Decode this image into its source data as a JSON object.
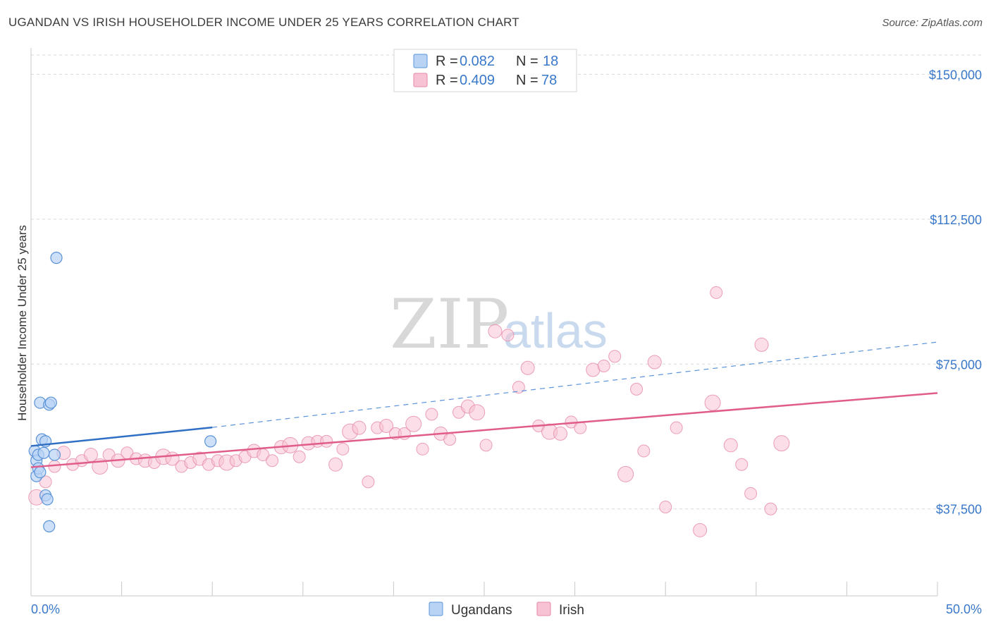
{
  "title": "UGANDAN VS IRISH HOUSEHOLDER INCOME UNDER 25 YEARS CORRELATION CHART",
  "source": "Source: ZipAtlas.com",
  "watermark": {
    "zip": "ZIP",
    "atlas": "atlas"
  },
  "colors": {
    "ugandan_fill": "#b9d3f5",
    "ugandan_stroke": "#5b93d8",
    "ugandan_line": "#2f6fc4",
    "irish_fill": "#f7c2d3",
    "irish_stroke": "#e68aa8",
    "irish_line": "#e05c8a",
    "axis_text": "#3a78c9",
    "grid": "#d9d9d9"
  },
  "legend": {
    "r_label": "R =",
    "n_label": "N =",
    "ugandan": {
      "r": "0.082",
      "n": "18"
    },
    "irish": {
      "r": "0.409",
      "n": "78"
    }
  },
  "chart_data": {
    "type": "scatter",
    "title": "UGANDAN VS IRISH HOUSEHOLDER INCOME UNDER 25 YEARS CORRELATION CHART",
    "xlabel": "",
    "ylabel": "Householder Income Under 25 years",
    "xlim": [
      0,
      50
    ],
    "ylim": [
      15000,
      155000
    ],
    "x_tick_labels": [
      "0.0%",
      "50.0%"
    ],
    "y_ticks": [
      37500,
      75000,
      112500,
      150000
    ],
    "y_tick_labels": [
      "$37,500",
      "$75,000",
      "$112,500",
      "$150,000"
    ],
    "grid": true,
    "legend_position": "top-center",
    "series": [
      {
        "name": "Ugandans",
        "r": 0.082,
        "n": 18,
        "points": [
          [
            0.2,
            52500
          ],
          [
            0.3,
            50000
          ],
          [
            0.3,
            46000
          ],
          [
            0.4,
            51500
          ],
          [
            0.4,
            48000
          ],
          [
            0.5,
            47000
          ],
          [
            0.5,
            65000
          ],
          [
            0.6,
            55500
          ],
          [
            0.7,
            52000
          ],
          [
            0.8,
            55000
          ],
          [
            0.8,
            41000
          ],
          [
            0.9,
            40000
          ],
          [
            1.0,
            64500
          ],
          [
            1.1,
            65000
          ],
          [
            1.0,
            33000
          ],
          [
            1.3,
            51500
          ],
          [
            1.4,
            102500
          ],
          [
            9.9,
            55000
          ]
        ],
        "trend_solid": [
          [
            0,
            53800
          ],
          [
            10,
            58600
          ]
        ],
        "trend_dashed": [
          [
            10,
            58600
          ],
          [
            50,
            80700
          ]
        ]
      },
      {
        "name": "Irish",
        "r": 0.409,
        "n": 78,
        "points": [
          [
            0.3,
            40500
          ],
          [
            0.8,
            44500
          ],
          [
            1.3,
            48500
          ],
          [
            1.8,
            52000
          ],
          [
            2.3,
            49000
          ],
          [
            2.8,
            50000
          ],
          [
            3.3,
            51500
          ],
          [
            3.8,
            48500
          ],
          [
            4.3,
            51500
          ],
          [
            4.8,
            50000
          ],
          [
            5.3,
            52000
          ],
          [
            5.8,
            50500
          ],
          [
            6.3,
            50000
          ],
          [
            6.8,
            49500
          ],
          [
            7.3,
            51000
          ],
          [
            7.8,
            50500
          ],
          [
            8.3,
            48500
          ],
          [
            8.8,
            49500
          ],
          [
            9.3,
            50500
          ],
          [
            9.8,
            49000
          ],
          [
            10.3,
            50000
          ],
          [
            10.8,
            49500
          ],
          [
            11.3,
            50000
          ],
          [
            11.8,
            51000
          ],
          [
            12.3,
            52500
          ],
          [
            12.8,
            51500
          ],
          [
            13.3,
            50000
          ],
          [
            13.8,
            53500
          ],
          [
            14.3,
            54000
          ],
          [
            14.8,
            51000
          ],
          [
            15.3,
            54500
          ],
          [
            15.8,
            55000
          ],
          [
            16.3,
            55000
          ],
          [
            16.8,
            49000
          ],
          [
            17.2,
            53000
          ],
          [
            17.6,
            57500
          ],
          [
            18.1,
            58500
          ],
          [
            18.6,
            44500
          ],
          [
            19.1,
            58500
          ],
          [
            19.6,
            59000
          ],
          [
            20.1,
            57000
          ],
          [
            20.6,
            57000
          ],
          [
            21.1,
            59500
          ],
          [
            21.6,
            53000
          ],
          [
            22.1,
            62000
          ],
          [
            22.6,
            57000
          ],
          [
            23.1,
            55500
          ],
          [
            23.6,
            62500
          ],
          [
            24.1,
            64000
          ],
          [
            24.6,
            62500
          ],
          [
            25.1,
            54000
          ],
          [
            25.6,
            83500
          ],
          [
            26.3,
            82500
          ],
          [
            26.9,
            69000
          ],
          [
            27.4,
            74000
          ],
          [
            28.0,
            59000
          ],
          [
            28.6,
            57500
          ],
          [
            29.2,
            57000
          ],
          [
            29.8,
            60000
          ],
          [
            30.3,
            58500
          ],
          [
            31.0,
            73500
          ],
          [
            31.6,
            74500
          ],
          [
            32.2,
            77000
          ],
          [
            32.8,
            46500
          ],
          [
            33.4,
            68500
          ],
          [
            33.8,
            52500
          ],
          [
            34.4,
            75500
          ],
          [
            35.0,
            38000
          ],
          [
            35.6,
            58500
          ],
          [
            36.9,
            32000
          ],
          [
            37.6,
            65000
          ],
          [
            37.8,
            93500
          ],
          [
            38.6,
            54000
          ],
          [
            39.2,
            49000
          ],
          [
            39.7,
            41500
          ],
          [
            40.3,
            80000
          ],
          [
            40.8,
            37500
          ],
          [
            41.4,
            54500
          ]
        ],
        "trend": [
          [
            0,
            48300
          ],
          [
            50,
            67500
          ]
        ]
      }
    ]
  },
  "bottom_legend": {
    "ugandans": "Ugandans",
    "irish": "Irish"
  },
  "axis_labels": {
    "ylabel": "Householder Income Under 25 years",
    "x_min": "0.0%",
    "x_max": "50.0%"
  }
}
